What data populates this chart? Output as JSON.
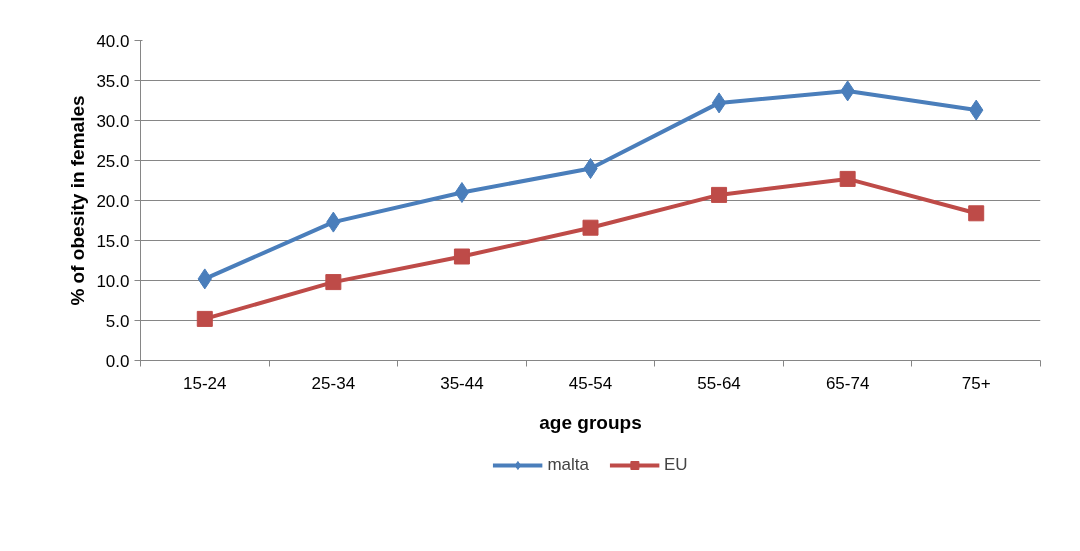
{
  "chart_data": {
    "type": "line",
    "xlabel": "age groups",
    "ylabel": "% of obesity in females",
    "categories": [
      "15-24",
      "25-34",
      "35-44",
      "45-54",
      "55-64",
      "65-74",
      "75+"
    ],
    "series": [
      {
        "name": "malta",
        "color": "#4a7ebb",
        "marker": "diamond",
        "values": [
          10.2,
          17.3,
          21.0,
          24.0,
          32.2,
          33.7,
          31.3
        ]
      },
      {
        "name": "EU",
        "color": "#be4b48",
        "marker": "square",
        "values": [
          5.2,
          9.8,
          13.0,
          16.6,
          20.7,
          22.7,
          18.4
        ]
      }
    ],
    "ylim": [
      0,
      40
    ],
    "yticks": [
      {
        "value": 0,
        "label": "0.0"
      },
      {
        "value": 5,
        "label": "5.0"
      },
      {
        "value": 10,
        "label": "10.0"
      },
      {
        "value": 15,
        "label": "15.0"
      },
      {
        "value": 20,
        "label": "20.0"
      },
      {
        "value": 25,
        "label": "25.0"
      },
      {
        "value": 30,
        "label": "30.0"
      },
      {
        "value": 35,
        "label": "35.0"
      },
      {
        "value": 40,
        "label": "40.0"
      }
    ],
    "grid": "y",
    "legend": "bottom",
    "line_style": "solid"
  }
}
